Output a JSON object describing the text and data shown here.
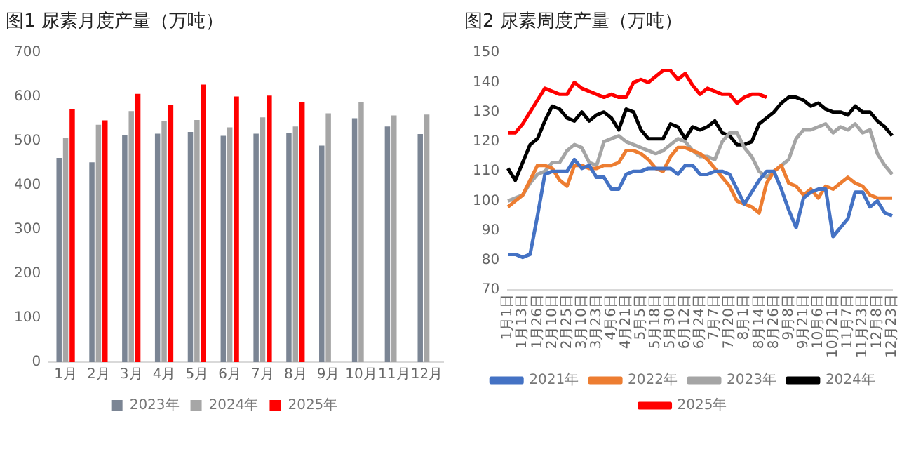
{
  "chart_data": [
    {
      "type": "bar",
      "title": "图1 尿素月度产量（万吨）",
      "categories": [
        "1月",
        "2月",
        "3月",
        "4月",
        "5月",
        "6月",
        "7月",
        "8月",
        "9月",
        "10月",
        "11月",
        "12月"
      ],
      "ylim": [
        0,
        700
      ],
      "yticks": [
        0,
        100,
        200,
        300,
        400,
        500,
        600,
        700
      ],
      "legend": "bottom",
      "series": [
        {
          "name": "2023年",
          "color": "#7b8594",
          "values": [
            462,
            452,
            513,
            517,
            521,
            512,
            517,
            519,
            490,
            552,
            533,
            516
          ]
        },
        {
          "name": "2024年",
          "color": "#a6a6a6",
          "values": [
            508,
            537,
            568,
            546,
            548,
            531,
            554,
            533,
            563,
            589,
            558,
            560
          ]
        },
        {
          "name": "2025年",
          "color": "#ff0000",
          "values": [
            572,
            547,
            607,
            583,
            628,
            601,
            603,
            589,
            null,
            null,
            null,
            null
          ]
        }
      ]
    },
    {
      "type": "line",
      "title": "图2 尿素周度产量（万吨）",
      "categories": [
        "1月1日",
        null,
        "1月13日",
        null,
        "1月26日",
        null,
        "2月10日",
        null,
        "2月25日",
        null,
        "3月10日",
        null,
        "3月23日",
        null,
        "4月6日",
        null,
        "4月21日",
        null,
        "5月5日",
        null,
        "5月18日",
        null,
        "5月30日",
        null,
        "6月12日",
        null,
        "6月24日",
        null,
        "7月7日",
        null,
        "7月20日",
        null,
        "8月1日",
        null,
        "8月14日",
        null,
        "8月26日",
        null,
        "9月8日",
        null,
        "9月21日",
        null,
        "10月6日",
        null,
        "10月21日",
        null,
        "11月7日",
        null,
        "11月23日",
        null,
        "12月8日",
        null,
        "12月23日"
      ],
      "ylim": [
        70,
        150
      ],
      "yticks": [
        70,
        80,
        90,
        100,
        110,
        120,
        130,
        140,
        150
      ],
      "legend": "bottom",
      "marker": "none",
      "series": [
        {
          "name": "2021年",
          "color": "#4472c4",
          "values": [
            82,
            82,
            81,
            82,
            95,
            109,
            110,
            110,
            110,
            114,
            111,
            112,
            108,
            108,
            104,
            104,
            109,
            110,
            110,
            111,
            111,
            111,
            111,
            109,
            112,
            112,
            109,
            109,
            110,
            110,
            109,
            104,
            99,
            103,
            107,
            110,
            110,
            104,
            97,
            91,
            101,
            103,
            104,
            104,
            88,
            91,
            94,
            103,
            103,
            98,
            100,
            96,
            95
          ]
        },
        {
          "name": "2022年",
          "color": "#ed7d31",
          "values": [
            98,
            100,
            102,
            107,
            112,
            112,
            111,
            107,
            105,
            112,
            112,
            111,
            111,
            112,
            112,
            113,
            117,
            117,
            116,
            114,
            111,
            110,
            115,
            118,
            118,
            117,
            116,
            114,
            111,
            108,
            105,
            100,
            99,
            98,
            96,
            106,
            110,
            112,
            106,
            105,
            102,
            104,
            101,
            105,
            104,
            106,
            108,
            106,
            105,
            102,
            101,
            101,
            101
          ]
        },
        {
          "name": "2023年",
          "color": "#a5a5a5",
          "values": [
            100,
            101,
            102,
            106,
            109,
            110,
            113,
            113,
            117,
            119,
            118,
            113,
            112,
            120,
            121,
            122,
            120,
            119,
            118,
            117,
            116,
            117,
            119,
            121,
            120,
            117,
            115,
            115,
            114,
            120,
            123,
            123,
            118,
            115,
            110,
            108,
            110,
            112,
            114,
            121,
            124,
            124,
            125,
            126,
            123,
            125,
            124,
            126,
            123,
            124,
            116,
            112,
            109
          ]
        },
        {
          "name": "2024年",
          "color": "#000000",
          "values": [
            111,
            107,
            113,
            119,
            121,
            127,
            132,
            131,
            128,
            127,
            130,
            127,
            129,
            130,
            128,
            124,
            131,
            130,
            124,
            121,
            121,
            121,
            126,
            125,
            121,
            125,
            124,
            125,
            127,
            123,
            122,
            119,
            119,
            120,
            126,
            128,
            130,
            133,
            135,
            135,
            134,
            132,
            133,
            131,
            130,
            130,
            129,
            132,
            130,
            130,
            127,
            125,
            122
          ]
        },
        {
          "name": "2025年",
          "color": "#ff0000",
          "values": [
            123,
            123,
            126,
            130,
            134,
            138,
            137,
            136,
            136,
            140,
            138,
            137,
            136,
            135,
            136,
            135,
            135,
            140,
            141,
            140,
            142,
            144,
            144,
            141,
            143,
            139,
            136,
            138,
            137,
            136,
            136,
            133,
            135,
            136,
            136,
            135,
            null,
            null,
            null,
            null,
            null,
            null,
            null,
            null,
            null,
            null,
            null,
            null,
            null,
            null,
            null,
            null,
            null
          ]
        }
      ]
    }
  ]
}
